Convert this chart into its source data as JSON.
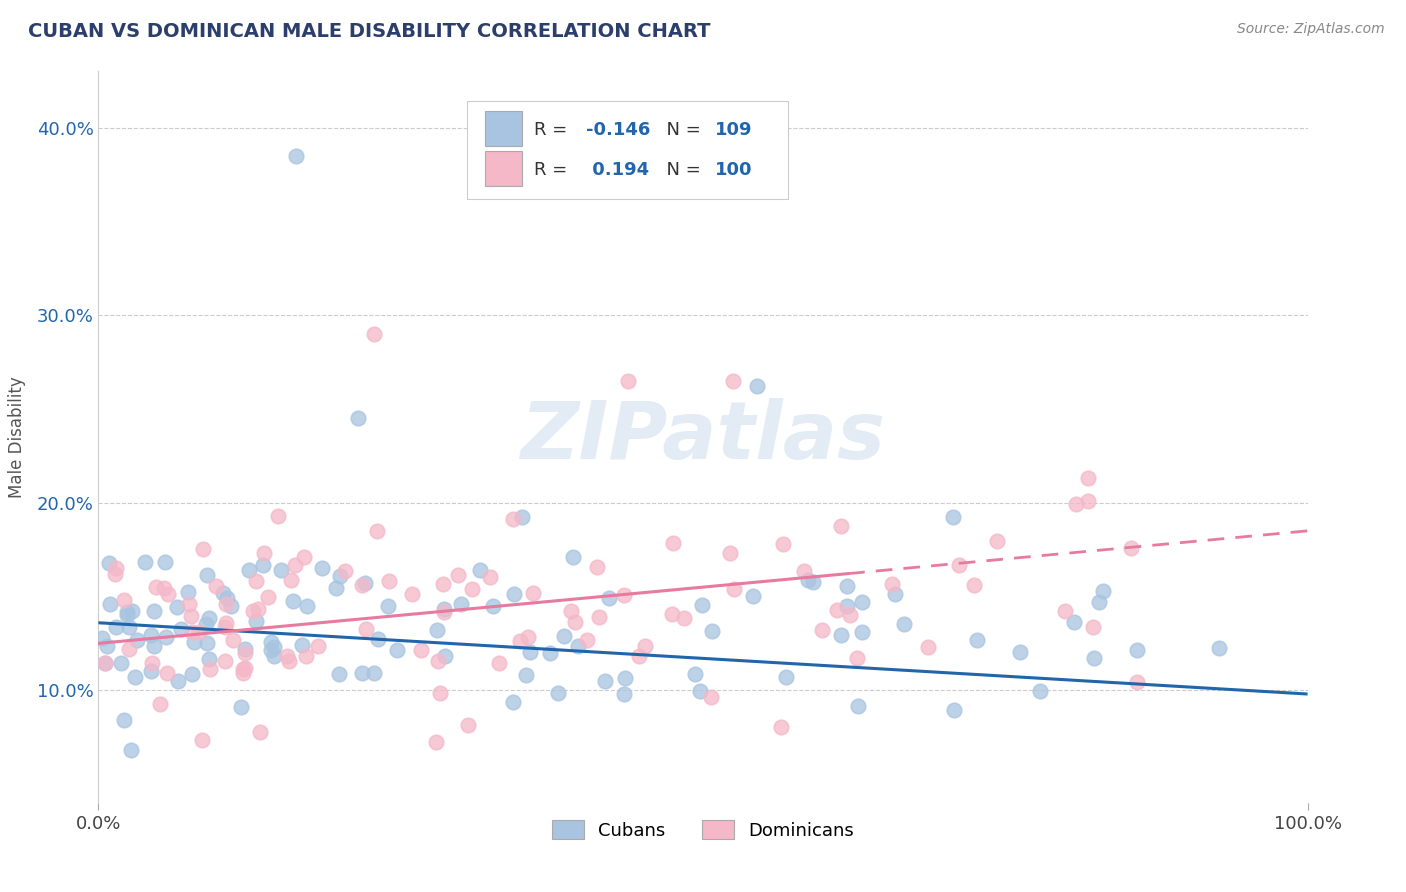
{
  "title": "CUBAN VS DOMINICAN MALE DISABILITY CORRELATION CHART",
  "source": "Source: ZipAtlas.com",
  "ylabel": "Male Disability",
  "xlim": [
    0.0,
    1.0
  ],
  "ylim": [
    0.04,
    0.43
  ],
  "x_tick_labels": [
    "0.0%",
    "100.0%"
  ],
  "y_ticks": [
    0.1,
    0.2,
    0.3,
    0.4
  ],
  "y_tick_labels": [
    "10.0%",
    "20.0%",
    "30.0%",
    "40.0%"
  ],
  "cuban_R": -0.146,
  "cuban_N": 109,
  "dominican_R": 0.194,
  "dominican_N": 100,
  "cuban_color": "#a8c4e0",
  "dominican_color": "#f4b8c8",
  "cuban_line_color": "#2166ac",
  "dominican_line_color": "#e87aa0",
  "background_color": "#ffffff",
  "grid_color": "#cccccc",
  "watermark_text": "ZIPatlas",
  "legend_label_cuban": "Cubans",
  "legend_label_dominican": "Dominicans",
  "title_color": "#2c3e6b",
  "source_color": "#888888",
  "seed": 42
}
